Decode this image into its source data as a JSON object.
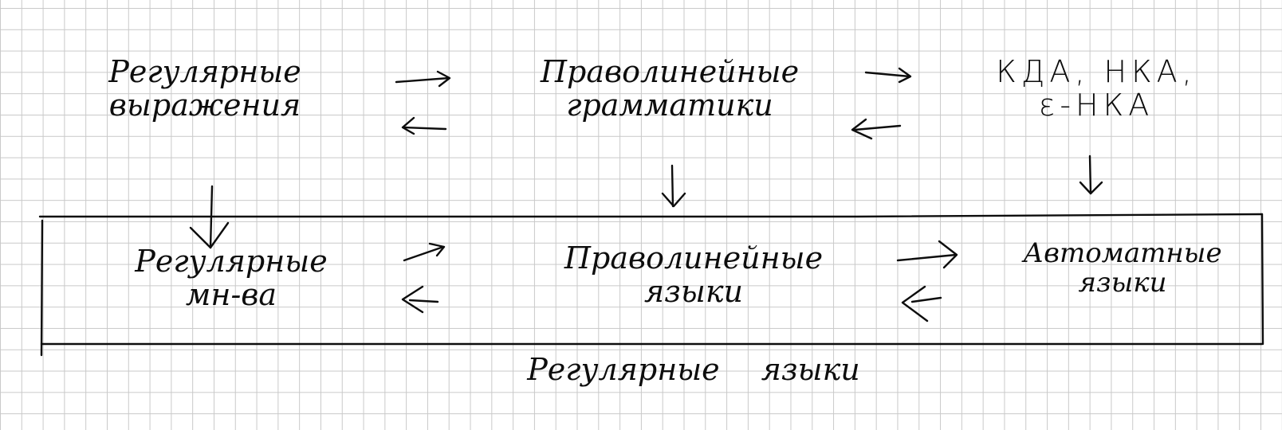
{
  "colors": {
    "paper": "#ffffff",
    "grid": "#c9c9c9",
    "ink": "#0d0d0d"
  },
  "top_row": {
    "regex": {
      "line1": "Регулярные",
      "line2": "выражения"
    },
    "grammars": {
      "line1": "Праволинейные",
      "line2": "грамматики"
    },
    "automata": {
      "line1": "КДА, НКА,",
      "line2": "ε-НКА"
    }
  },
  "bottom_row": {
    "sets": {
      "line1": "Регулярные",
      "line2": "мн-ва"
    },
    "right_linear_langs": {
      "line1": "Праволинейные",
      "line2": "языки"
    },
    "automaton_langs": {
      "line1": "Автоматные",
      "line2": "языки"
    }
  },
  "footer": {
    "caption": "Регулярные языки"
  }
}
